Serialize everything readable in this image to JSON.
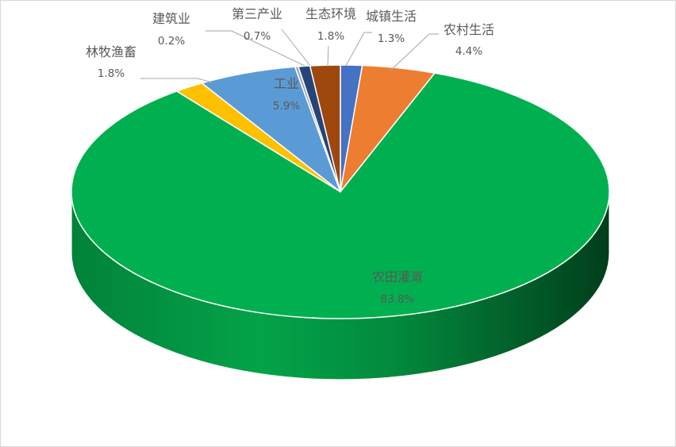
{
  "chart_data": {
    "type": "pie",
    "title": "",
    "series": [
      {
        "slices": [
          {
            "label": "城镇生活",
            "value": 1.3,
            "text": "1.3%",
            "color": "#4472C4"
          },
          {
            "label": "农村生活",
            "value": 4.4,
            "text": "4.4%",
            "color": "#ED7D31"
          },
          {
            "label": "农田灌溉",
            "value": 83.8,
            "text": "83.8%",
            "color": "#00B050"
          },
          {
            "label": "林牧渔畜",
            "value": 1.8,
            "text": "1.8%",
            "color": "#FFC000"
          },
          {
            "label": "工业",
            "value": 5.9,
            "text": "5.9%",
            "color": "#5B9BD5"
          },
          {
            "label": "建筑业",
            "value": 0.2,
            "text": "0.2%",
            "color": "#A5A5A5"
          },
          {
            "label": "第三产业",
            "value": 0.7,
            "text": "0.7%",
            "color": "#264478"
          },
          {
            "label": "生态环境",
            "value": 1.8,
            "text": "1.8%",
            "color": "#9E480E"
          }
        ]
      }
    ],
    "legend": "none",
    "style": "3d"
  }
}
